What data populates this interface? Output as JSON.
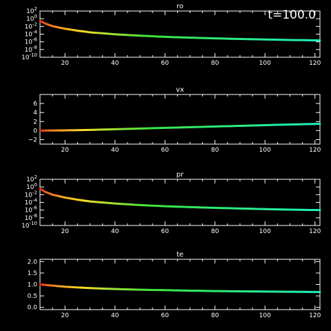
{
  "time_label": "t=100.0",
  "chart_data": [
    {
      "type": "line",
      "title": "ro",
      "yscale": "log",
      "xlim": [
        10,
        122
      ],
      "ylim": [
        1e-10,
        100
      ],
      "grid": false,
      "colormap": "rainbow by value",
      "x_ticks": [
        20,
        40,
        60,
        80,
        100,
        120
      ],
      "y_ticks": [
        {
          "base": "10",
          "exp": "2",
          "value": 100
        },
        {
          "base": "10",
          "exp": "0",
          "value": 1
        },
        {
          "base": "10",
          "exp": "-2",
          "value": 0.01
        },
        {
          "base": "10",
          "exp": "-4",
          "value": 0.0001
        },
        {
          "base": "10",
          "exp": "-6",
          "value": 1e-06
        },
        {
          "base": "10",
          "exp": "-8",
          "value": 1e-08
        },
        {
          "base": "10",
          "exp": "-10",
          "value": 1e-10
        }
      ],
      "series": [
        {
          "x": [
            10,
            12,
            15,
            20,
            25,
            30,
            40,
            50,
            60,
            70,
            80,
            90,
            100,
            110,
            122
          ],
          "y": [
            0.3,
            0.06,
            0.012,
            0.0025,
            0.0008,
            0.0003,
            9e-05,
            4e-05,
            2e-05,
            1.2e-05,
            8e-06,
            5.5e-06,
            4e-06,
            3e-06,
            2.4e-06
          ]
        }
      ]
    },
    {
      "type": "line",
      "title": "vx",
      "yscale": "linear",
      "xlim": [
        10,
        122
      ],
      "ylim": [
        -3,
        8
      ],
      "grid": false,
      "colormap": "rainbow by value",
      "x_ticks": [
        20,
        40,
        60,
        80,
        100,
        120
      ],
      "y_ticks": [
        {
          "base": "6",
          "value": 6
        },
        {
          "base": "4",
          "value": 4
        },
        {
          "base": "2",
          "value": 2
        },
        {
          "base": "0",
          "value": 0
        },
        {
          "base": "−2",
          "value": -2
        }
      ],
      "series": [
        {
          "x": [
            10,
            15,
            20,
            30,
            40,
            50,
            60,
            70,
            80,
            90,
            100,
            110,
            122
          ],
          "y": [
            0,
            0.02,
            0.05,
            0.15,
            0.3,
            0.45,
            0.6,
            0.75,
            0.9,
            1.05,
            1.2,
            1.35,
            1.5
          ]
        }
      ]
    },
    {
      "type": "line",
      "title": "pr",
      "yscale": "log",
      "xlim": [
        10,
        122
      ],
      "ylim": [
        1e-10,
        100
      ],
      "grid": false,
      "colormap": "rainbow by value",
      "x_ticks": [
        20,
        40,
        60,
        80,
        100,
        120
      ],
      "y_ticks": [
        {
          "base": "10",
          "exp": "2",
          "value": 100
        },
        {
          "base": "10",
          "exp": "0",
          "value": 1
        },
        {
          "base": "10",
          "exp": "-2",
          "value": 0.01
        },
        {
          "base": "10",
          "exp": "-4",
          "value": 0.0001
        },
        {
          "base": "10",
          "exp": "-6",
          "value": 1e-06
        },
        {
          "base": "10",
          "exp": "-8",
          "value": 1e-08
        },
        {
          "base": "10",
          "exp": "-10",
          "value": 1e-10
        }
      ],
      "series": [
        {
          "x": [
            10,
            12,
            15,
            20,
            25,
            30,
            40,
            50,
            60,
            70,
            80,
            90,
            100,
            110,
            122
          ],
          "y": [
            0.35,
            0.06,
            0.01,
            0.0018,
            0.0005,
            0.00018,
            5e-05,
            2e-05,
            1e-05,
            6e-06,
            3.8e-06,
            2.6e-06,
            1.8e-06,
            1.3e-06,
            1e-06
          ]
        }
      ]
    },
    {
      "type": "line",
      "title": "te",
      "yscale": "linear",
      "xlim": [
        10,
        122
      ],
      "ylim": [
        -0.1,
        2.1
      ],
      "grid": false,
      "colormap": "rainbow by value",
      "x_ticks": [
        20,
        40,
        60,
        80,
        100,
        120
      ],
      "y_ticks": [
        {
          "base": "2.0",
          "value": 2.0
        },
        {
          "base": "1.5",
          "value": 1.5
        },
        {
          "base": "1.0",
          "value": 1.0
        },
        {
          "base": "0.5",
          "value": 0.5
        },
        {
          "base": "0.0",
          "value": 0.0
        }
      ],
      "series": [
        {
          "x": [
            10,
            15,
            20,
            30,
            40,
            50,
            60,
            70,
            80,
            90,
            100,
            110,
            122
          ],
          "y": [
            1.0,
            0.95,
            0.9,
            0.84,
            0.8,
            0.77,
            0.75,
            0.73,
            0.71,
            0.7,
            0.69,
            0.68,
            0.67
          ]
        }
      ]
    }
  ]
}
